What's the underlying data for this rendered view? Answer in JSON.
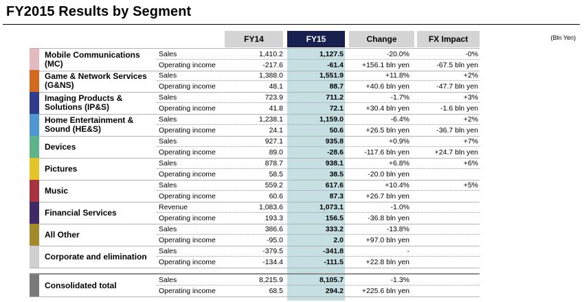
{
  "title": "FY2015 Results by Segment",
  "unit": "(Bln Yen)",
  "headers": {
    "fy14": "FY14",
    "fy15": "FY15",
    "change": "Change",
    "fx": "FX Impact"
  },
  "colors": {
    "header_dark": "#17204f",
    "header_grey": "#d4d4d4",
    "fy15_band": "#c5dfe3"
  },
  "segments": [
    {
      "name": "Mobile Communications (MC)",
      "color": "#e4b9c0",
      "rows": [
        {
          "label": "Sales",
          "fy14": "1,410.2",
          "fy15": "1,127.5",
          "change": "-20.0%",
          "fx": "-0%"
        },
        {
          "label": "Operating income",
          "fy14": "-217.6",
          "fy15": "-61.4",
          "change": "+156.1 bln yen",
          "fx": "-67.5 bln yen"
        }
      ]
    },
    {
      "name": "Game & Network Services (G&NS)",
      "color": "#d2691e",
      "rows": [
        {
          "label": "Sales",
          "fy14": "1,388.0",
          "fy15": "1,551.9",
          "change": "+11.8%",
          "fx": "+2%"
        },
        {
          "label": "Operating income",
          "fy14": "48.1",
          "fy15": "88.7",
          "change": "+40.6 bln yen",
          "fx": "-47.7 bln yen"
        }
      ]
    },
    {
      "name": "Imaging Products & Solutions (IP&S)",
      "color": "#2f3c8c",
      "rows": [
        {
          "label": "Sales",
          "fy14": "723.9",
          "fy15": "711.2",
          "change": "-1.7%",
          "fx": "+3%"
        },
        {
          "label": "Operating income",
          "fy14": "41.8",
          "fy15": "72.1",
          "change": "+30.4 bln yen",
          "fx": "-1.6 bln yen"
        }
      ]
    },
    {
      "name": "Home Entertainment & Sound (HE&S)",
      "color": "#4f97d3",
      "rows": [
        {
          "label": "Sales",
          "fy14": "1,238.1",
          "fy15": "1,159.0",
          "change": "-6.4%",
          "fx": "+2%"
        },
        {
          "label": "Operating income",
          "fy14": "24.1",
          "fy15": "50.6",
          "change": "+26.5 bln yen",
          "fx": "-36.7 bln yen"
        }
      ]
    },
    {
      "name": "Devices",
      "color": "#5fb38a",
      "rows": [
        {
          "label": "Sales",
          "fy14": "927.1",
          "fy15": "935.8",
          "change": "+0.9%",
          "fx": "+7%"
        },
        {
          "label": "Operating income",
          "fy14": "89.0",
          "fy15": "-28.6",
          "change": "-117.6 bln yen",
          "fx": "+24.7 bln yen"
        }
      ]
    },
    {
      "name": "Pictures",
      "color": "#e3c52a",
      "rows": [
        {
          "label": "Sales",
          "fy14": "878.7",
          "fy15": "938.1",
          "change": "+6.8%",
          "fx": "+6%"
        },
        {
          "label": "Operating income",
          "fy14": "58.5",
          "fy15": "38.5",
          "change": "-20.0 bln yen",
          "fx": ""
        }
      ]
    },
    {
      "name": "Music",
      "color": "#a8323e",
      "rows": [
        {
          "label": "Sales",
          "fy14": "559.2",
          "fy15": "617.6",
          "change": "+10.4%",
          "fx": "+5%"
        },
        {
          "label": "Operating income",
          "fy14": "60.6",
          "fy15": "87.3",
          "change": "+26.7 bln yen",
          "fx": ""
        }
      ]
    },
    {
      "name": "Financial Services",
      "color": "#3d2a66",
      "rows": [
        {
          "label": "Revenue",
          "fy14": "1,083.6",
          "fy15": "1,073.1",
          "change": "-1.0%",
          "fx": ""
        },
        {
          "label": "Operating income",
          "fy14": "193.3",
          "fy15": "156.5",
          "change": "-36.8 bln yen",
          "fx": ""
        }
      ]
    },
    {
      "name": "All Other",
      "color": "#a38929",
      "rows": [
        {
          "label": "Sales",
          "fy14": "386.6",
          "fy15": "333.2",
          "change": "-13.8%",
          "fx": ""
        },
        {
          "label": "Operating income",
          "fy14": "-95.0",
          "fy15": "2.0",
          "change": "+97.0 bln yen",
          "fx": ""
        }
      ]
    },
    {
      "name": "Corporate and elimination",
      "color": "#cfcfcf",
      "rows": [
        {
          "label": "Sales",
          "fy14": "-379.5",
          "fy15": "-341.8",
          "change": "-",
          "fx": ""
        },
        {
          "label": "Operating income",
          "fy14": "-134.4",
          "fy15": "-111.5",
          "change": "+22.8 bln yen",
          "fx": ""
        }
      ]
    },
    {
      "name": "Consolidated total",
      "color": "#7a7a7a",
      "rows": [
        {
          "label": "Sales",
          "fy14": "8,215.9",
          "fy15": "8,105.7",
          "change": "-1.3%",
          "fx": ""
        },
        {
          "label": "Operating income",
          "fy14": "68.5",
          "fy15": "294.2",
          "change": "+225.6 bln yen",
          "fx": ""
        }
      ]
    }
  ]
}
